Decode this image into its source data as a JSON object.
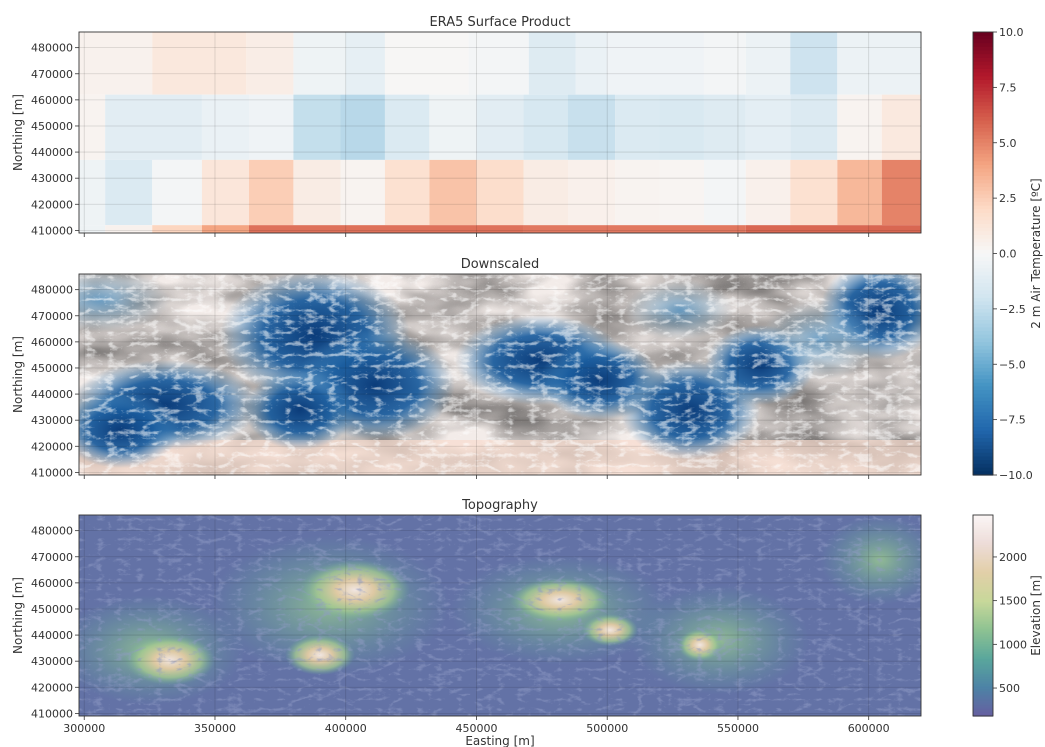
{
  "chart_data": [
    {
      "type": "heatmap",
      "title": "ERA5 Surface Product",
      "xlabel": "",
      "ylabel": "Northing [m]",
      "xlim": [
        298000,
        620000
      ],
      "ylim": [
        409000,
        486000
      ],
      "yticks": [
        410000,
        420000,
        430000,
        440000,
        450000,
        460000,
        470000,
        480000
      ],
      "grid": true,
      "rows": [
        {
          "y0": 462000,
          "y1": 486000,
          "cells": [
            [
              298000,
              326000,
              0.4
            ],
            [
              326000,
              362000,
              1.1
            ],
            [
              362000,
              380000,
              0.7
            ],
            [
              380000,
              400000,
              -0.5
            ],
            [
              400000,
              415000,
              -0.9
            ],
            [
              415000,
              447000,
              0.1
            ],
            [
              447000,
              470000,
              -0.2
            ],
            [
              470000,
              488000,
              -1.3
            ],
            [
              488000,
              500000,
              -0.7
            ],
            [
              500000,
              537000,
              -0.4
            ],
            [
              537000,
              553000,
              -0.2
            ],
            [
              553000,
              570000,
              -0.6
            ],
            [
              570000,
              588000,
              -2.1
            ],
            [
              588000,
              620000,
              -0.6
            ]
          ]
        },
        {
          "y0": 437000,
          "y1": 462000,
          "cells": [
            [
              298000,
              308000,
              0.3
            ],
            [
              308000,
              345000,
              -1.1
            ],
            [
              345000,
              363000,
              -0.7
            ],
            [
              363000,
              380000,
              -0.4
            ],
            [
              380000,
              398000,
              -2.4
            ],
            [
              398000,
              415000,
              -2.8
            ],
            [
              415000,
              432000,
              -1.5
            ],
            [
              432000,
              450000,
              -0.5
            ],
            [
              450000,
              468000,
              -1.1
            ],
            [
              468000,
              485000,
              -1.7
            ],
            [
              485000,
              503000,
              -2.3
            ],
            [
              503000,
              520000,
              -1.5
            ],
            [
              520000,
              537000,
              -1.6
            ],
            [
              537000,
              553000,
              -1.3
            ],
            [
              553000,
              570000,
              -1.0
            ],
            [
              570000,
              588000,
              -1.4
            ],
            [
              588000,
              605000,
              0.3
            ],
            [
              605000,
              620000,
              1.0
            ]
          ]
        },
        {
          "y0": 412000,
          "y1": 437000,
          "cells": [
            [
              298000,
              308000,
              -0.5
            ],
            [
              308000,
              326000,
              -1.5
            ],
            [
              326000,
              345000,
              -0.2
            ],
            [
              345000,
              363000,
              1.2
            ],
            [
              363000,
              380000,
              2.5
            ],
            [
              380000,
              398000,
              0.8
            ],
            [
              398000,
              415000,
              0.3
            ],
            [
              415000,
              432000,
              1.6
            ],
            [
              432000,
              450000,
              2.9
            ],
            [
              450000,
              468000,
              1.8
            ],
            [
              468000,
              485000,
              0.8
            ],
            [
              485000,
              503000,
              0.5
            ],
            [
              503000,
              520000,
              0.3
            ],
            [
              520000,
              537000,
              0.2
            ],
            [
              537000,
              553000,
              -0.2
            ],
            [
              553000,
              570000,
              0.5
            ],
            [
              570000,
              588000,
              1.6
            ],
            [
              588000,
              605000,
              3.3
            ],
            [
              605000,
              620000,
              5.0
            ]
          ]
        },
        {
          "y0": 409000,
          "y1": 412000,
          "cells": [
            [
              298000,
              308000,
              -0.5
            ],
            [
              308000,
              326000,
              0.4
            ],
            [
              326000,
              345000,
              2.2
            ],
            [
              345000,
              363000,
              4.0
            ],
            [
              363000,
              468000,
              5.5
            ],
            [
              468000,
              553000,
              5.3
            ],
            [
              553000,
              620000,
              5.8
            ]
          ]
        }
      ]
    },
    {
      "type": "heatmap",
      "title": "Downscaled",
      "xlabel": "",
      "ylabel": "Northing [m]",
      "xlim": [
        298000,
        620000
      ],
      "ylim": [
        409000,
        486000
      ],
      "yticks": [
        410000,
        420000,
        430000,
        440000,
        450000,
        460000,
        470000,
        480000
      ],
      "grid": true
    },
    {
      "type": "heatmap",
      "title": "Topography",
      "xlabel": "Easting [m]",
      "ylabel": "Northing [m]",
      "xlim": [
        298000,
        620000
      ],
      "ylim": [
        409000,
        486000
      ],
      "xticks": [
        300000,
        350000,
        400000,
        450000,
        500000,
        550000,
        600000
      ],
      "yticks": [
        410000,
        420000,
        430000,
        440000,
        450000,
        460000,
        470000,
        480000
      ],
      "grid": true
    }
  ],
  "colorbars": [
    {
      "label": "2 m Air Temperature [ºC]",
      "range": [
        -10,
        10
      ],
      "ticks": [
        "10.0",
        "7.5",
        "5.0",
        "2.5",
        "0.0",
        "−2.5",
        "−5.0",
        "−7.5",
        "−10.0"
      ],
      "colormap": [
        "#053061",
        "#2166ac",
        "#4393c3",
        "#92c5de",
        "#d1e5f0",
        "#f7f7f7",
        "#fddbc7",
        "#f4a582",
        "#d6604d",
        "#b2182b",
        "#67001f"
      ]
    },
    {
      "label": "Elevation [m]",
      "range": [
        180,
        2480
      ],
      "ticks": [
        "2000",
        "1500",
        "1000",
        "500"
      ],
      "tick_values": [
        2000,
        1500,
        1000,
        500
      ],
      "colormap": [
        "#665fa0",
        "#4d83a6",
        "#5aa79c",
        "#8ec292",
        "#c8d89a",
        "#e2cfa8",
        "#eddcd8",
        "#fbf6f6"
      ]
    }
  ]
}
